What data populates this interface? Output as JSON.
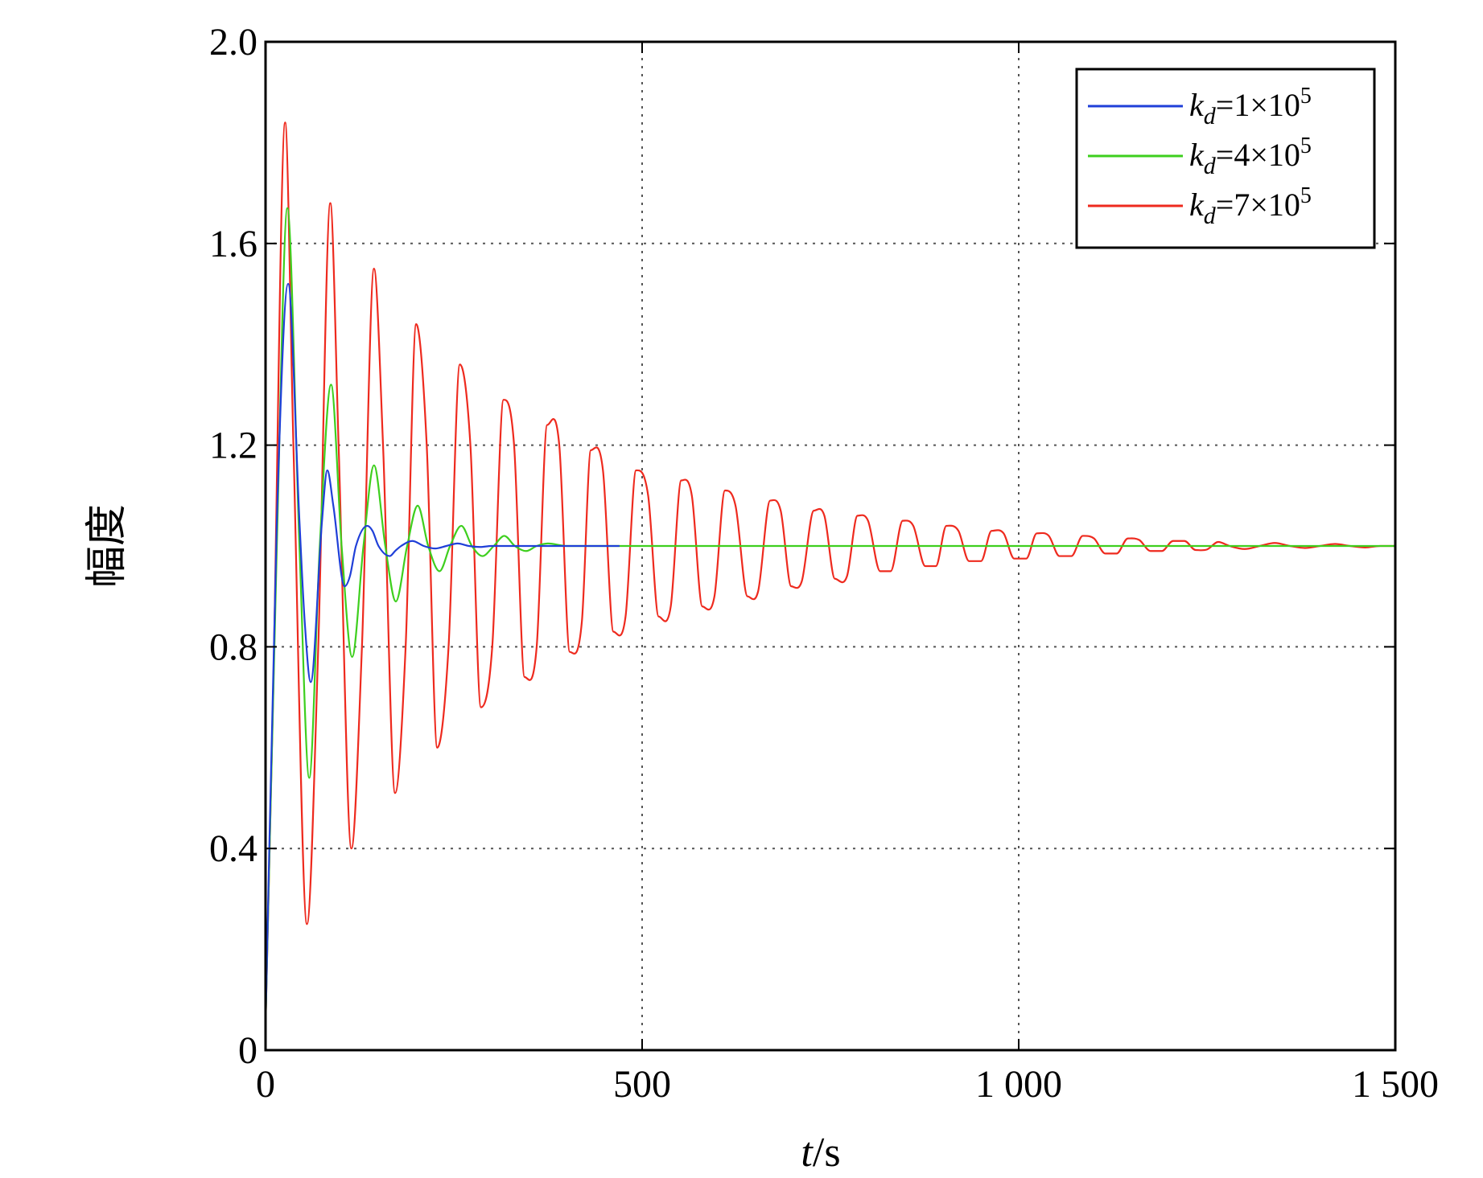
{
  "chart_data": {
    "type": "line",
    "title": "",
    "xlabel_italic": "t",
    "xlabel_unit": "/s",
    "ylabel": "幅度",
    "xlim": [
      0,
      1500
    ],
    "ylim": [
      0,
      2.0
    ],
    "x_ticks": [
      {
        "value": 0,
        "label": "0"
      },
      {
        "value": 500,
        "label": "500"
      },
      {
        "value": 1000,
        "label": "1 000"
      },
      {
        "value": 1500,
        "label": "1 500"
      }
    ],
    "y_ticks": [
      {
        "value": 0,
        "label": "0"
      },
      {
        "value": 0.4,
        "label": "0.4"
      },
      {
        "value": 0.8,
        "label": "0.8"
      },
      {
        "value": 1.2,
        "label": "1.2"
      },
      {
        "value": 1.6,
        "label": "1.6"
      },
      {
        "value": 2.0,
        "label": "2.0"
      }
    ],
    "grid": "dotted",
    "legend_position": "top-right",
    "series": [
      {
        "name_var": "k",
        "name_sub": "d",
        "name_coef": "=1×10",
        "name_exp": "5",
        "color": "#1f3fd8",
        "x": [
          0,
          15,
          30,
          45,
          52,
          60,
          75,
          82,
          90,
          105,
          112,
          120,
          135,
          142,
          150,
          165,
          172,
          180,
          195,
          210,
          225,
          240,
          255,
          270,
          285,
          300,
          330,
          360,
          400,
          450,
          470
        ],
        "y": [
          0.05,
          1.05,
          1.52,
          1.05,
          0.85,
          0.73,
          1.05,
          1.15,
          1.08,
          0.92,
          0.94,
          1.0,
          1.04,
          1.03,
          1.0,
          0.98,
          0.99,
          1.0,
          1.01,
          1.0,
          0.995,
          1.0,
          1.005,
          1.0,
          0.998,
          1.0,
          1.0,
          1.0,
          1.0,
          1.0,
          1.0
        ]
      },
      {
        "name_var": "k",
        "name_sub": "d",
        "name_coef": "=4×10",
        "name_exp": "5",
        "color": "#3ecf1e",
        "x": [
          0,
          15,
          29,
          45,
          58,
          72,
          87,
          101,
          115,
          130,
          144,
          159,
          173,
          188,
          202,
          216,
          231,
          245,
          260,
          274,
          288,
          303,
          317,
          331,
          346,
          360,
          375,
          400,
          450,
          500,
          600,
          800,
          1000,
          1200,
          1500
        ],
        "y": [
          0.05,
          1.0,
          1.67,
          1.0,
          0.54,
          1.0,
          1.32,
          1.0,
          0.78,
          1.0,
          1.16,
          1.0,
          0.89,
          1.0,
          1.08,
          1.0,
          0.95,
          1.0,
          1.04,
          1.0,
          0.98,
          1.0,
          1.02,
          1.0,
          0.99,
          1.0,
          1.005,
          1.0,
          1.0,
          1.0,
          1.0,
          1.0,
          1.0,
          1.0,
          1.0
        ]
      },
      {
        "name_var": "k",
        "name_sub": "d",
        "name_coef": "=7×10",
        "name_exp": "5",
        "color": "#ee2a1e",
        "x": [
          0,
          10,
          26,
          37,
          55,
          70,
          86,
          97,
          114,
          128,
          144,
          156,
          172,
          186,
          200,
          214,
          228,
          243,
          258,
          272,
          286,
          301,
          316,
          330,
          344,
          360,
          374,
          390,
          404,
          420,
          432,
          448,
          462,
          478,
          492,
          508,
          522,
          538,
          552,
          566,
          580,
          596,
          610,
          624,
          640,
          654,
          670,
          684,
          698,
          712,
          728,
          742,
          756,
          772,
          786,
          800,
          816,
          830,
          846,
          860,
          876,
          890,
          904,
          920,
          934,
          950,
          964,
          980,
          994,
          1010,
          1024,
          1040,
          1054,
          1070,
          1085,
          1100,
          1115,
          1130,
          1145,
          1160,
          1175,
          1190,
          1205,
          1220,
          1235,
          1250,
          1265,
          1280,
          1300,
          1320,
          1340,
          1360,
          1380,
          1400,
          1420,
          1440,
          1460,
          1480,
          1500
        ],
        "y": [
          0.05,
          0.7,
          1.84,
          1.2,
          0.25,
          0.8,
          1.68,
          1.2,
          0.4,
          0.8,
          1.55,
          1.2,
          0.51,
          0.8,
          1.44,
          1.2,
          0.6,
          0.8,
          1.36,
          1.2,
          0.68,
          0.8,
          1.29,
          1.2,
          0.74,
          0.8,
          1.24,
          1.2,
          0.79,
          0.85,
          1.19,
          1.15,
          0.83,
          0.86,
          1.15,
          1.1,
          0.86,
          0.88,
          1.13,
          1.1,
          0.88,
          0.9,
          1.11,
          1.08,
          0.9,
          0.91,
          1.09,
          1.07,
          0.92,
          0.93,
          1.07,
          1.06,
          0.935,
          0.94,
          1.06,
          1.05,
          0.95,
          0.95,
          1.05,
          1.04,
          0.96,
          0.96,
          1.04,
          1.03,
          0.97,
          0.97,
          1.03,
          1.025,
          0.975,
          0.975,
          1.025,
          1.02,
          0.98,
          0.98,
          1.02,
          1.015,
          0.985,
          0.985,
          1.015,
          1.012,
          0.99,
          0.99,
          1.01,
          1.01,
          0.992,
          0.993,
          1.008,
          1.0,
          0.994,
          1.0,
          1.006,
          1.0,
          0.996,
          1.0,
          1.004,
          1.0,
          0.997,
          1.0,
          1.0
        ]
      }
    ]
  }
}
